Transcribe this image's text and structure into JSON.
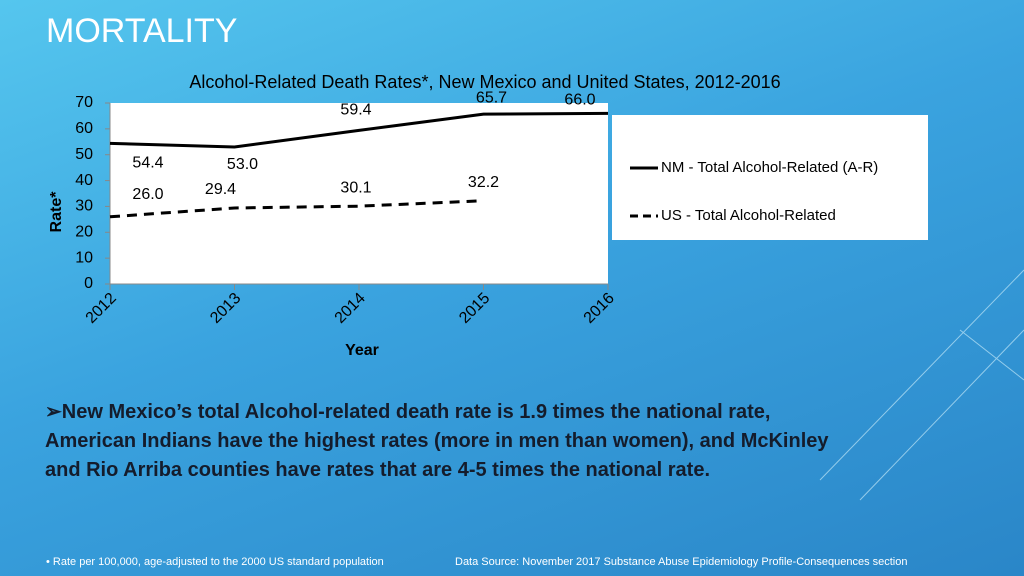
{
  "slide_title": "MORTALITY",
  "bullet": "➢New Mexico’s total Alcohol-related death rate is 1.9 times the national rate, American Indians have the highest rates (more in men than women), and McKinley and Rio Arriba counties have rates that are 4-5 times the national rate.",
  "footnote": "•   Rate per 100,000, age-adjusted to the 2000 US standard population",
  "source": "Data Source: November 2017 Substance Abuse Epidemiology Profile-Consequences section",
  "chart_data": {
    "type": "line",
    "title": "Alcohol-Related Death Rates*, New Mexico and United States, 2012-2016",
    "x_label": "Year",
    "y_label": "Rate*",
    "x": [
      2012,
      2013,
      2014,
      2015,
      2016
    ],
    "xlim": [
      2012,
      2016
    ],
    "xticks": [
      2012,
      2013,
      2014,
      2015,
      2016
    ],
    "ylim": [
      0,
      70
    ],
    "yticks": [
      0,
      10,
      20,
      30,
      40,
      50,
      60,
      70
    ],
    "legend": "right",
    "series": [
      {
        "name": "NM - Total Alcohol-Related (A-R)",
        "color": "#000000",
        "dash": false,
        "values": [
          54.4,
          53.0,
          59.4,
          65.7,
          66.0
        ],
        "value_labels": [
          "54.4",
          "53.0",
          "59.4",
          "65.7",
          "66.0"
        ]
      },
      {
        "name": "US - Total Alcohol-Related",
        "color": "#000000",
        "dash": true,
        "values": [
          26.0,
          29.4,
          30.1,
          32.2,
          null
        ],
        "value_labels": [
          "26.0",
          "29.4",
          "30.1",
          "32.2",
          null
        ]
      }
    ]
  }
}
